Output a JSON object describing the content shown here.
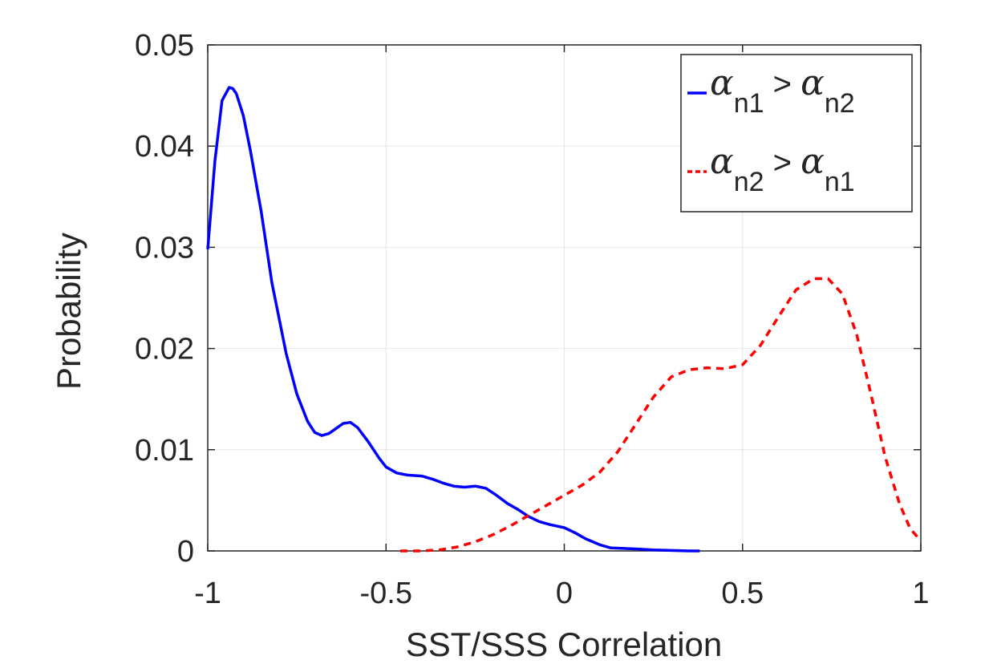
{
  "chart_data": {
    "type": "line",
    "xlabel": "SST/SSS Correlation",
    "ylabel": "Probability",
    "xlim": [
      -1,
      1
    ],
    "ylim": [
      0,
      0.05
    ],
    "xticks": [
      -1,
      -0.5,
      0,
      0.5,
      1
    ],
    "xtick_labels": [
      "-1",
      "-0.5",
      "0",
      "0.5",
      "1"
    ],
    "yticks": [
      0,
      0.01,
      0.02,
      0.03,
      0.04,
      0.05
    ],
    "ytick_labels": [
      "0",
      "0.01",
      "0.02",
      "0.03",
      "0.04",
      "0.05"
    ],
    "grid": true,
    "legend_position": "top-right",
    "series": [
      {
        "legend_parts": [
          "α",
          "n1",
          " > ",
          "α",
          "n2"
        ],
        "color": "#0000ff",
        "style": "solid",
        "x": [
          -1.0,
          -0.98,
          -0.96,
          -0.94,
          -0.93,
          -0.92,
          -0.9,
          -0.88,
          -0.85,
          -0.82,
          -0.78,
          -0.75,
          -0.72,
          -0.7,
          -0.68,
          -0.66,
          -0.64,
          -0.62,
          -0.6,
          -0.58,
          -0.55,
          -0.52,
          -0.5,
          -0.47,
          -0.44,
          -0.4,
          -0.37,
          -0.34,
          -0.31,
          -0.28,
          -0.25,
          -0.22,
          -0.19,
          -0.16,
          -0.13,
          -0.1,
          -0.07,
          -0.04,
          0.0,
          0.03,
          0.06,
          0.1,
          0.13,
          0.16,
          0.2,
          0.25,
          0.3,
          0.35,
          0.38
        ],
        "y": [
          0.0298,
          0.0385,
          0.0445,
          0.0458,
          0.0457,
          0.0452,
          0.043,
          0.0395,
          0.0335,
          0.0265,
          0.0195,
          0.0155,
          0.0128,
          0.0117,
          0.0114,
          0.0116,
          0.0121,
          0.0126,
          0.0127,
          0.0122,
          0.0108,
          0.0092,
          0.0083,
          0.0077,
          0.0075,
          0.0074,
          0.0071,
          0.0067,
          0.0064,
          0.0063,
          0.0064,
          0.0062,
          0.0055,
          0.0047,
          0.0041,
          0.0034,
          0.0029,
          0.0026,
          0.0023,
          0.0018,
          0.0012,
          0.0006,
          0.0003,
          0.00025,
          0.0002,
          0.0001,
          5e-05,
          0.0,
          0.0
        ]
      },
      {
        "legend_parts": [
          "α",
          "n2",
          " > ",
          "α",
          "n1"
        ],
        "color": "#ff0000",
        "style": "dashed",
        "x": [
          -0.46,
          -0.4,
          -0.35,
          -0.3,
          -0.25,
          -0.2,
          -0.15,
          -0.1,
          -0.05,
          0.0,
          0.05,
          0.1,
          0.15,
          0.2,
          0.25,
          0.3,
          0.35,
          0.4,
          0.45,
          0.5,
          0.55,
          0.6,
          0.65,
          0.7,
          0.74,
          0.78,
          0.82,
          0.86,
          0.9,
          0.94,
          0.97,
          1.0
        ],
        "y": [
          0.0,
          0.0,
          0.0001,
          0.0004,
          0.0009,
          0.0016,
          0.0025,
          0.0035,
          0.0045,
          0.0055,
          0.0065,
          0.0078,
          0.0098,
          0.0125,
          0.0152,
          0.0172,
          0.0179,
          0.0181,
          0.018,
          0.0184,
          0.0203,
          0.0231,
          0.0258,
          0.0269,
          0.0269,
          0.0254,
          0.0214,
          0.0155,
          0.0093,
          0.0047,
          0.0022,
          0.001
        ]
      }
    ]
  }
}
